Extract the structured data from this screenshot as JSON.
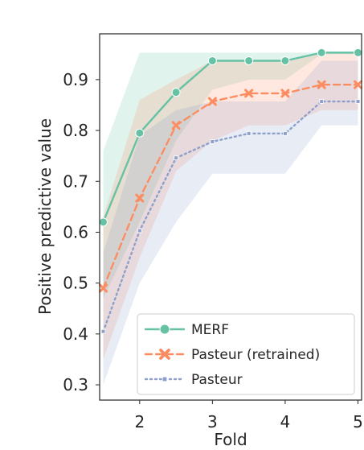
{
  "chart_data": {
    "type": "line",
    "title": "",
    "xlabel": "Fold",
    "ylabel": "Positive predictive value",
    "xlim": [
      1.45,
      5.05
    ],
    "ylim": [
      0.27,
      0.99
    ],
    "xticks": [
      2,
      3,
      4,
      5
    ],
    "yticks": [
      0.3,
      0.4,
      0.5,
      0.6,
      0.7,
      0.8,
      0.9
    ],
    "x": [
      1.5,
      2,
      2.5,
      3,
      3.5,
      4,
      4.5,
      5
    ],
    "grid": false,
    "legend_position": "lower-right",
    "series": [
      {
        "name": "MERF",
        "color": "#66c2a5",
        "linestyle": "solid",
        "marker": "circle",
        "values": [
          0.62,
          0.795,
          0.875,
          0.937,
          0.937,
          0.937,
          0.953,
          0.953
        ],
        "lower": [
          0.47,
          0.62,
          0.78,
          0.88,
          0.9,
          0.9,
          0.95,
          0.95
        ],
        "upper": [
          0.76,
          0.953,
          0.953,
          0.953,
          0.953,
          0.953,
          0.953,
          0.953
        ]
      },
      {
        "name": "Pasteur (retrained)",
        "color": "#fc8d62",
        "linestyle": "dashed",
        "marker": "x",
        "values": [
          0.49,
          0.667,
          0.81,
          0.857,
          0.873,
          0.873,
          0.89,
          0.89
        ],
        "lower": [
          0.35,
          0.55,
          0.72,
          0.78,
          0.81,
          0.81,
          0.84,
          0.84
        ],
        "upper": [
          0.63,
          0.86,
          0.9,
          0.937,
          0.937,
          0.937,
          0.953,
          0.953
        ]
      },
      {
        "name": "Pasteur",
        "color": "#8da0cb",
        "linestyle": "dotted",
        "marker": "square",
        "values": [
          0.405,
          0.603,
          0.746,
          0.778,
          0.794,
          0.794,
          0.857,
          0.857
        ],
        "lower": [
          0.3,
          0.5,
          0.62,
          0.715,
          0.715,
          0.715,
          0.81,
          0.81
        ],
        "upper": [
          0.56,
          0.79,
          0.84,
          0.857,
          0.857,
          0.857,
          0.937,
          0.937
        ]
      }
    ]
  }
}
